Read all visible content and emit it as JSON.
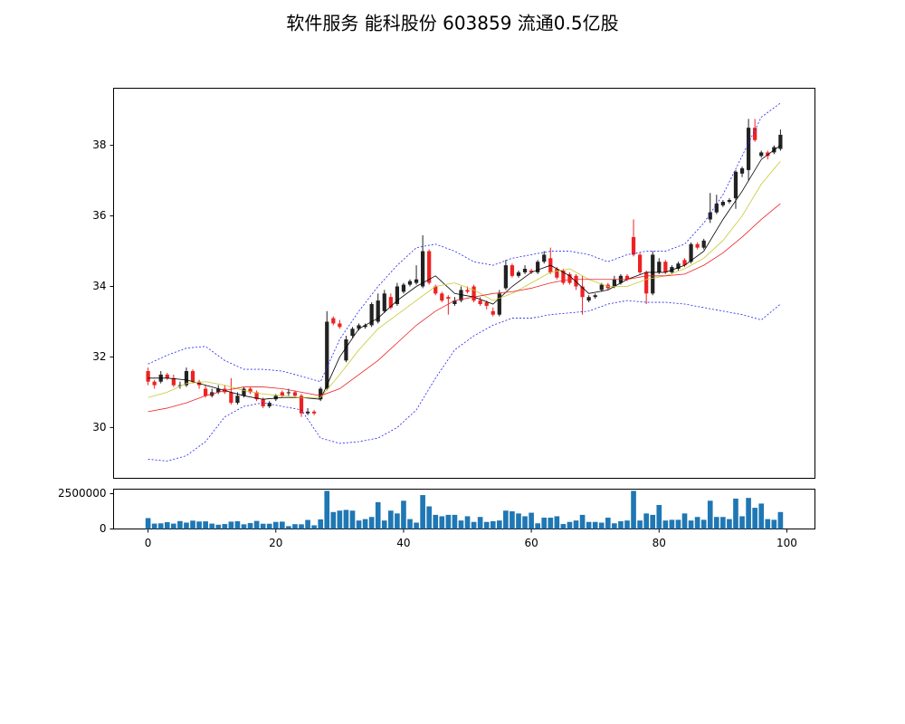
{
  "chart_data": [
    {
      "type": "candlestick",
      "title": "软件服务 能科股份 603859 流通0.5亿股",
      "up_color": "#222222",
      "down_color": "#ee2222",
      "x": [
        0,
        1,
        2,
        3,
        4,
        5,
        6,
        7,
        8,
        9,
        10,
        11,
        12,
        13,
        14,
        15,
        16,
        17,
        18,
        19,
        20,
        21,
        22,
        23,
        24,
        25,
        26,
        27,
        28,
        29,
        30,
        31,
        32,
        33,
        34,
        35,
        36,
        37,
        38,
        39,
        40,
        41,
        42,
        43,
        44,
        45,
        46,
        47,
        48,
        49,
        50,
        51,
        52,
        53,
        54,
        55,
        56,
        57,
        58,
        59,
        60,
        61,
        62,
        63,
        64,
        65,
        66,
        67,
        68,
        69,
        70,
        71,
        72,
        73,
        74,
        75,
        76,
        77,
        78,
        79,
        80,
        81,
        82,
        83,
        84,
        85,
        86,
        87,
        88,
        89,
        90,
        91,
        92,
        93,
        94,
        95,
        96,
        97,
        98,
        99
      ],
      "open": [
        31.6,
        31.3,
        31.3,
        31.5,
        31.4,
        31.2,
        31.2,
        31.6,
        31.3,
        31.1,
        30.9,
        31.0,
        31.1,
        31.0,
        30.7,
        30.9,
        31.1,
        31.0,
        30.8,
        30.6,
        30.8,
        31.0,
        31.0,
        31.0,
        30.9,
        30.4,
        30.45,
        30.8,
        31.1,
        33.1,
        32.95,
        31.9,
        32.6,
        32.8,
        32.85,
        32.9,
        33.0,
        33.3,
        33.7,
        33.5,
        33.85,
        34.05,
        34.1,
        34.0,
        35.0,
        34.0,
        33.8,
        33.7,
        33.5,
        33.6,
        33.9,
        34.0,
        33.6,
        33.55,
        33.3,
        33.2,
        33.95,
        34.6,
        34.3,
        34.4,
        34.45,
        34.4,
        34.7,
        34.8,
        34.5,
        34.45,
        34.35,
        34.3,
        34.0,
        33.6,
        33.7,
        33.9,
        34.05,
        34.0,
        34.1,
        34.3,
        35.4,
        34.9,
        34.4,
        33.8,
        34.4,
        34.7,
        34.4,
        34.5,
        34.75,
        34.7,
        35.2,
        35.1,
        35.9,
        36.1,
        36.3,
        36.4,
        36.5,
        37.2,
        37.3,
        38.5,
        37.7,
        37.8,
        37.8,
        37.9
      ],
      "high": [
        31.7,
        31.35,
        31.6,
        31.55,
        31.5,
        31.3,
        31.7,
        31.65,
        31.35,
        31.2,
        31.1,
        31.2,
        31.2,
        31.4,
        31.0,
        31.15,
        31.15,
        31.05,
        30.85,
        30.75,
        30.95,
        31.05,
        31.1,
        31.05,
        30.95,
        30.55,
        30.5,
        31.15,
        33.3,
        33.15,
        33.05,
        32.6,
        32.85,
        32.95,
        32.95,
        33.55,
        33.8,
        33.9,
        33.8,
        34.1,
        34.1,
        34.2,
        34.6,
        35.45,
        35.05,
        34.05,
        33.85,
        33.75,
        33.7,
        34.0,
        34.0,
        34.05,
        33.7,
        33.6,
        33.4,
        33.9,
        34.75,
        34.65,
        34.45,
        34.6,
        34.5,
        34.75,
        35.0,
        35.1,
        34.55,
        34.5,
        34.4,
        34.35,
        34.3,
        33.75,
        33.8,
        34.1,
        34.1,
        34.3,
        34.35,
        34.35,
        35.9,
        34.95,
        34.45,
        35.0,
        34.8,
        34.75,
        34.6,
        34.7,
        34.8,
        35.25,
        35.25,
        35.35,
        36.65,
        36.6,
        36.45,
        36.5,
        37.3,
        37.4,
        38.75,
        38.75,
        37.85,
        37.85,
        38.0,
        38.45
      ],
      "low": [
        31.2,
        31.1,
        31.25,
        31.35,
        31.15,
        31.1,
        31.15,
        31.25,
        31.1,
        30.85,
        30.85,
        30.95,
        30.95,
        30.65,
        30.65,
        30.85,
        30.95,
        30.75,
        30.55,
        30.55,
        30.75,
        30.85,
        30.9,
        30.85,
        30.3,
        30.35,
        30.35,
        30.75,
        31.05,
        32.9,
        32.8,
        31.85,
        32.55,
        32.75,
        32.8,
        32.85,
        32.95,
        33.25,
        33.35,
        33.45,
        33.8,
        34.0,
        34.05,
        33.95,
        34.05,
        33.75,
        33.55,
        33.2,
        33.45,
        33.55,
        33.8,
        33.55,
        33.45,
        33.35,
        33.15,
        33.15,
        33.9,
        34.25,
        34.25,
        34.35,
        34.35,
        34.35,
        34.65,
        34.35,
        34.2,
        34.05,
        34.05,
        33.9,
        33.2,
        33.55,
        33.65,
        33.85,
        33.9,
        33.95,
        34.05,
        34.15,
        34.85,
        34.35,
        33.5,
        33.75,
        34.35,
        34.35,
        34.35,
        34.45,
        34.55,
        34.65,
        35.05,
        35.05,
        35.8,
        36.05,
        36.25,
        36.35,
        36.2,
        37.1,
        37.0,
        38.1,
        37.65,
        37.6,
        37.75,
        37.85
      ],
      "close": [
        31.3,
        31.2,
        31.5,
        31.4,
        31.2,
        31.2,
        31.6,
        31.3,
        31.2,
        30.9,
        31.0,
        31.1,
        31.0,
        30.7,
        30.9,
        31.1,
        31.0,
        30.8,
        30.6,
        30.7,
        30.9,
        30.9,
        31.0,
        30.9,
        30.4,
        30.45,
        30.4,
        31.1,
        33.0,
        32.95,
        32.85,
        32.5,
        32.8,
        32.9,
        32.9,
        33.5,
        33.6,
        33.8,
        33.4,
        34.0,
        34.05,
        34.15,
        34.2,
        35.0,
        34.1,
        33.8,
        33.6,
        33.65,
        33.6,
        33.9,
        33.85,
        33.6,
        33.5,
        33.45,
        33.2,
        33.8,
        34.6,
        34.3,
        34.4,
        34.5,
        34.4,
        34.7,
        34.9,
        34.4,
        34.25,
        34.1,
        34.1,
        34.0,
        33.7,
        33.7,
        33.75,
        34.05,
        33.95,
        34.2,
        34.3,
        34.2,
        34.9,
        34.4,
        33.8,
        34.9,
        34.7,
        34.4,
        34.55,
        34.65,
        34.6,
        35.2,
        35.1,
        35.3,
        36.1,
        36.35,
        36.4,
        36.45,
        37.25,
        37.35,
        38.5,
        38.15,
        37.8,
        37.7,
        37.95,
        38.3
      ],
      "lines": [
        {
          "color": "#000000",
          "dash": false,
          "x": [
            0,
            3,
            6,
            9,
            12,
            15,
            18,
            21,
            24,
            27,
            30,
            33,
            36,
            39,
            42,
            45,
            48,
            51,
            54,
            57,
            60,
            63,
            66,
            69,
            72,
            75,
            78,
            81,
            84,
            87,
            90,
            93,
            96,
            99
          ],
          "values": [
            31.4,
            31.4,
            31.35,
            31.2,
            31.05,
            30.9,
            30.8,
            30.85,
            30.85,
            30.8,
            32.0,
            32.8,
            33.1,
            33.6,
            34.0,
            34.3,
            33.8,
            33.7,
            33.5,
            34.0,
            34.4,
            34.6,
            34.3,
            33.8,
            33.9,
            34.2,
            34.4,
            34.4,
            34.6,
            35.0,
            35.9,
            36.7,
            37.6,
            38.0
          ]
        },
        {
          "color": "#c8c832",
          "dash": false,
          "x": [
            0,
            3,
            6,
            9,
            12,
            15,
            18,
            21,
            24,
            27,
            30,
            33,
            36,
            39,
            42,
            45,
            48,
            51,
            54,
            57,
            60,
            63,
            66,
            69,
            72,
            75,
            78,
            81,
            84,
            87,
            90,
            93,
            96,
            99
          ],
          "values": [
            30.85,
            31.0,
            31.25,
            31.3,
            31.2,
            31.05,
            30.95,
            30.9,
            30.85,
            30.85,
            31.5,
            32.2,
            32.8,
            33.2,
            33.6,
            34.0,
            34.1,
            33.9,
            33.6,
            33.8,
            34.1,
            34.4,
            34.5,
            34.2,
            34.0,
            34.0,
            34.2,
            34.3,
            34.5,
            34.8,
            35.3,
            36.0,
            36.9,
            37.55
          ]
        },
        {
          "color": "#ee2222",
          "dash": false,
          "x": [
            0,
            3,
            6,
            9,
            12,
            15,
            18,
            21,
            24,
            27,
            30,
            33,
            36,
            39,
            42,
            45,
            48,
            51,
            54,
            57,
            60,
            63,
            66,
            69,
            72,
            75,
            78,
            81,
            84,
            87,
            90,
            93,
            96,
            99
          ],
          "values": [
            30.45,
            30.55,
            30.7,
            30.9,
            31.05,
            31.15,
            31.15,
            31.1,
            31.0,
            30.9,
            31.1,
            31.5,
            31.9,
            32.4,
            32.9,
            33.3,
            33.6,
            33.7,
            33.8,
            33.85,
            33.95,
            34.1,
            34.2,
            34.2,
            34.2,
            34.2,
            34.3,
            34.3,
            34.35,
            34.6,
            34.95,
            35.4,
            35.9,
            36.35
          ]
        },
        {
          "color": "#2222ee",
          "dash": true,
          "x": [
            0,
            3,
            6,
            9,
            12,
            15,
            18,
            21,
            24,
            27,
            30,
            33,
            36,
            39,
            42,
            45,
            48,
            51,
            54,
            57,
            60,
            63,
            66,
            69,
            72,
            75,
            78,
            81,
            84,
            87,
            90,
            93,
            96,
            99
          ],
          "values": [
            31.8,
            32.05,
            32.25,
            32.3,
            31.9,
            31.65,
            31.65,
            31.6,
            31.45,
            31.3,
            32.5,
            33.3,
            34.0,
            34.6,
            35.1,
            35.2,
            35.0,
            34.7,
            34.6,
            34.8,
            34.9,
            35.0,
            35.0,
            34.9,
            34.7,
            34.9,
            35.0,
            35.0,
            35.2,
            35.8,
            36.6,
            37.7,
            38.8,
            39.2
          ]
        },
        {
          "color": "#2222ee",
          "dash": true,
          "x": [
            0,
            3,
            6,
            9,
            12,
            15,
            18,
            21,
            24,
            27,
            30,
            33,
            36,
            39,
            42,
            45,
            48,
            51,
            54,
            57,
            60,
            63,
            66,
            69,
            72,
            75,
            78,
            81,
            84,
            87,
            90,
            93,
            96,
            99
          ],
          "values": [
            29.1,
            29.05,
            29.2,
            29.6,
            30.3,
            30.6,
            30.7,
            30.6,
            30.5,
            29.7,
            29.55,
            29.6,
            29.7,
            30.0,
            30.5,
            31.4,
            32.2,
            32.6,
            32.9,
            33.1,
            33.1,
            33.2,
            33.25,
            33.3,
            33.5,
            33.6,
            33.55,
            33.55,
            33.5,
            33.4,
            33.3,
            33.2,
            33.05,
            33.5
          ]
        }
      ],
      "xlim": [
        -5.4,
        104.4
      ],
      "ylim": [
        28.56,
        39.62
      ],
      "yticks": [
        30,
        32,
        34,
        36,
        38
      ]
    },
    {
      "type": "bar",
      "color": "#1f77b4",
      "x": [
        0,
        1,
        2,
        3,
        4,
        5,
        6,
        7,
        8,
        9,
        10,
        11,
        12,
        13,
        14,
        15,
        16,
        17,
        18,
        19,
        20,
        21,
        22,
        23,
        24,
        25,
        26,
        27,
        28,
        29,
        30,
        31,
        32,
        33,
        34,
        35,
        36,
        37,
        38,
        39,
        40,
        41,
        42,
        43,
        44,
        45,
        46,
        47,
        48,
        49,
        50,
        51,
        52,
        53,
        54,
        55,
        56,
        57,
        58,
        59,
        60,
        61,
        62,
        63,
        64,
        65,
        66,
        67,
        68,
        69,
        70,
        71,
        72,
        73,
        74,
        75,
        76,
        77,
        78,
        79,
        80,
        81,
        82,
        83,
        84,
        85,
        86,
        87,
        88,
        89,
        90,
        91,
        92,
        93,
        94,
        95,
        96,
        97,
        98,
        99
      ],
      "values": [
        770000,
        380000,
        400000,
        480000,
        380000,
        560000,
        450000,
        590000,
        530000,
        540000,
        380000,
        300000,
        350000,
        520000,
        550000,
        330000,
        420000,
        570000,
        370000,
        370000,
        500000,
        520000,
        200000,
        340000,
        330000,
        640000,
        260000,
        680000,
        2700000,
        1200000,
        1300000,
        1350000,
        1300000,
        600000,
        700000,
        850000,
        1900000,
        600000,
        1300000,
        1100000,
        2000000,
        700000,
        450000,
        2400000,
        1600000,
        1000000,
        900000,
        1000000,
        1000000,
        600000,
        900000,
        500000,
        850000,
        500000,
        550000,
        600000,
        1300000,
        1250000,
        1100000,
        900000,
        1150000,
        400000,
        800000,
        800000,
        900000,
        350000,
        500000,
        600000,
        1000000,
        500000,
        500000,
        450000,
        800000,
        400000,
        550000,
        600000,
        2700000,
        600000,
        1100000,
        1000000,
        1700000,
        600000,
        650000,
        650000,
        1100000,
        600000,
        850000,
        650000,
        2000000,
        850000,
        850000,
        700000,
        2150000,
        900000,
        2200000,
        1500000,
        1800000,
        700000,
        650000,
        1200000
      ],
      "xlim": [
        -5.4,
        104.4
      ],
      "ylim": [
        0,
        2820000
      ],
      "yticks": [
        0,
        2500000
      ],
      "xticks": [
        0,
        20,
        40,
        60,
        80,
        100
      ]
    }
  ]
}
